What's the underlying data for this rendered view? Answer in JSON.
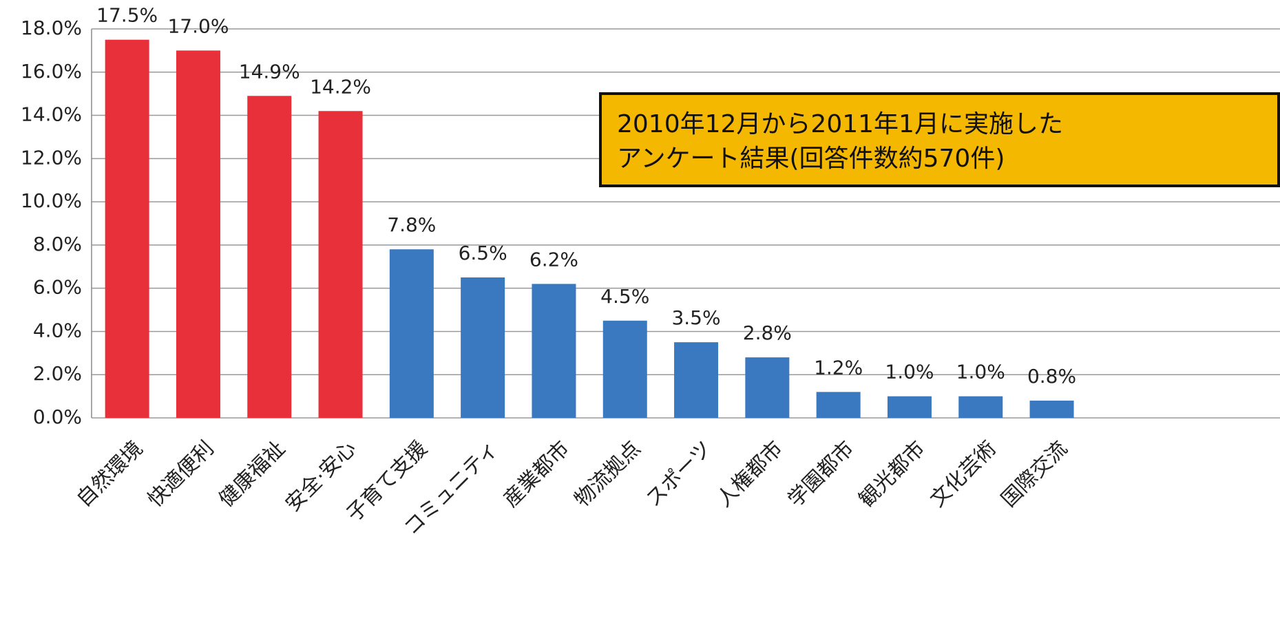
{
  "chart_data": {
    "type": "bar",
    "categories": [
      "自然環境",
      "快適便利",
      "健康福祉",
      "安全·安心",
      "子育て支援",
      "コミュニティ",
      "産業都市",
      "物流拠点",
      "スポーツ",
      "人権都市",
      "学園都市",
      "観光都市",
      "文化芸術",
      "国際交流"
    ],
    "values": [
      17.5,
      17.0,
      14.9,
      14.2,
      7.8,
      6.5,
      6.2,
      4.5,
      3.5,
      2.8,
      1.2,
      1.0,
      1.0,
      0.8
    ],
    "value_labels": [
      "17.5%",
      "17.0%",
      "14.9%",
      "14.2%",
      "7.8%",
      "6.5%",
      "6.2%",
      "4.5%",
      "3.5%",
      "2.8%",
      "1.2%",
      "1.0%",
      "1.0%",
      "0.8%"
    ],
    "colors": [
      "#e8303a",
      "#e8303a",
      "#e8303a",
      "#e8303a",
      "#3a78c0",
      "#3a78c0",
      "#3a78c0",
      "#3a78c0",
      "#3a78c0",
      "#3a78c0",
      "#3a78c0",
      "#3a78c0",
      "#3a78c0",
      "#3a78c0"
    ],
    "ylim": [
      0,
      18
    ],
    "yticks": [
      {
        "value": 0,
        "label": "0.0%"
      },
      {
        "value": 2,
        "label": "2.0%"
      },
      {
        "value": 4,
        "label": "4.0%"
      },
      {
        "value": 6,
        "label": "6.0%"
      },
      {
        "value": 8,
        "label": "8.0%"
      },
      {
        "value": 10,
        "label": "10.0%"
      },
      {
        "value": 12,
        "label": "12.0%"
      },
      {
        "value": 14,
        "label": "14.0%"
      },
      {
        "value": 16,
        "label": "16.0%"
      },
      {
        "value": 18,
        "label": "18.0%"
      }
    ],
    "grid": true,
    "annotation": [
      "2010年12月から2011年1月に実施した",
      "アンケート結果(回答件数約570件)"
    ]
  }
}
